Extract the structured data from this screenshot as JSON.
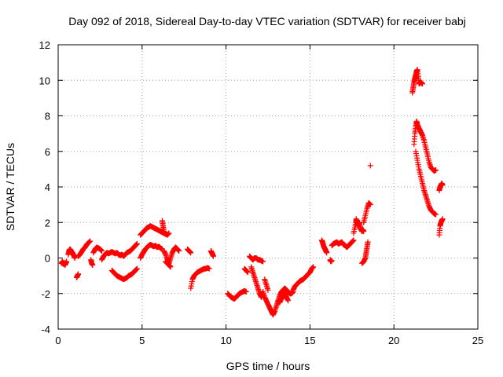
{
  "chart_data": {
    "type": "scatter",
    "title": "Day 092 of 2018, Sidereal Day-to-day VTEC variation (SDTVAR) for receiver babj",
    "xlabel": "GPS time / hours",
    "ylabel": "SDTVAR / TECUs",
    "xlim": [
      0,
      25
    ],
    "ylim": [
      -4,
      12
    ],
    "xticks": [
      0,
      5,
      10,
      15,
      20,
      25
    ],
    "yticks": [
      -4,
      -2,
      0,
      2,
      4,
      6,
      8,
      10,
      12
    ],
    "grid": true,
    "marker": "+",
    "color": "#ff0000",
    "series": [
      {
        "name": "SDTVAR",
        "segments": [
          {
            "x": [
              0.2,
              0.25,
              0.3,
              0.35,
              0.4,
              0.45,
              0.5
            ],
            "y": [
              -0.3,
              -0.2,
              -0.35,
              -0.25,
              -0.4,
              -0.3,
              -0.2
            ]
          },
          {
            "x": [
              0.6,
              0.65,
              0.7,
              0.75,
              0.8,
              0.85,
              0.9,
              0.95,
              1.0
            ],
            "y": [
              0.2,
              0.4,
              0.5,
              0.45,
              0.35,
              0.3,
              0.2,
              0.1,
              0.0
            ]
          },
          {
            "x": [
              1.1,
              1.15,
              1.2
            ],
            "y": [
              -1.1,
              -1.0,
              -0.9
            ]
          },
          {
            "x": [
              1.2,
              1.3,
              1.4,
              1.5,
              1.6,
              1.7,
              1.8,
              1.9
            ],
            "y": [
              0.1,
              0.2,
              0.35,
              0.5,
              0.6,
              0.75,
              0.85,
              0.95
            ]
          },
          {
            "x": [
              1.95,
              2.0,
              2.05
            ],
            "y": [
              -0.1,
              -0.3,
              -0.4
            ]
          },
          {
            "x": [
              2.1,
              2.2,
              2.3,
              2.4,
              2.5,
              2.6
            ],
            "y": [
              0.3,
              0.5,
              0.6,
              0.55,
              0.5,
              0.4
            ]
          },
          {
            "x": [
              2.6,
              2.7,
              2.8,
              2.9,
              3.0,
              3.1,
              3.2,
              3.3,
              3.4,
              3.5,
              3.6,
              3.7,
              3.8,
              3.9,
              4.0,
              4.1,
              4.2,
              4.3,
              4.4,
              4.5,
              4.6,
              4.7
            ],
            "y": [
              -0.1,
              0.1,
              0.2,
              0.3,
              0.25,
              0.3,
              0.35,
              0.3,
              0.25,
              0.3,
              0.2,
              0.15,
              0.2,
              0.1,
              0.2,
              0.3,
              0.35,
              0.4,
              0.5,
              0.6,
              0.7,
              0.8
            ]
          },
          {
            "x": [
              3.2,
              3.3,
              3.4,
              3.5,
              3.6,
              3.7,
              3.8,
              3.9,
              4.0,
              4.1,
              4.2,
              4.3,
              4.4,
              4.5,
              4.6,
              4.7
            ],
            "y": [
              -0.7,
              -0.8,
              -0.9,
              -1.0,
              -1.05,
              -1.1,
              -1.15,
              -1.2,
              -1.15,
              -1.1,
              -1.0,
              -0.95,
              -0.9,
              -0.8,
              -0.7,
              -0.6
            ]
          },
          {
            "x": [
              4.9,
              5.0,
              5.1,
              5.2,
              5.3,
              5.4,
              5.5,
              5.6,
              5.7,
              5.8,
              5.9,
              6.0,
              6.1,
              6.2,
              6.3,
              6.4,
              6.5,
              6.6
            ],
            "y": [
              1.3,
              1.4,
              1.5,
              1.6,
              1.7,
              1.75,
              1.8,
              1.75,
              1.7,
              1.65,
              1.6,
              1.55,
              1.5,
              1.45,
              1.4,
              1.35,
              1.3,
              1.4
            ]
          },
          {
            "x": [
              4.9,
              5.0,
              5.1,
              5.2,
              5.3,
              5.4,
              5.5,
              5.6,
              5.7,
              5.8,
              5.9,
              6.0,
              6.1,
              6.2
            ],
            "y": [
              0.0,
              0.2,
              0.35,
              0.5,
              0.6,
              0.7,
              0.75,
              0.7,
              0.65,
              0.7,
              0.6,
              0.65,
              0.55,
              0.5
            ]
          },
          {
            "x": [
              6.2,
              6.25,
              6.3
            ],
            "y": [
              2.1,
              1.8,
              1.5
            ]
          },
          {
            "x": [
              6.3,
              6.4,
              6.5,
              6.6,
              6.7,
              6.8,
              6.9,
              7.0,
              7.1,
              7.2
            ],
            "y": [
              0.4,
              0.2,
              -0.1,
              -0.3,
              0.0,
              0.3,
              0.5,
              0.6,
              0.5,
              0.4
            ]
          },
          {
            "x": [
              6.4,
              6.5,
              6.6,
              6.7
            ],
            "y": [
              -0.2,
              -0.3,
              -0.4,
              -0.5
            ]
          },
          {
            "x": [
              7.7,
              7.8,
              7.9
            ],
            "y": [
              0.5,
              0.4,
              0.3
            ]
          },
          {
            "x": [
              7.9,
              8.0,
              8.1,
              8.2,
              8.3,
              8.4,
              8.5,
              8.6,
              8.7,
              8.8,
              8.9,
              9.0
            ],
            "y": [
              -1.7,
              -1.2,
              -1.0,
              -0.9,
              -0.8,
              -0.75,
              -0.7,
              -0.65,
              -0.6,
              -0.6,
              -0.55,
              -0.6
            ]
          },
          {
            "x": [
              9.1,
              9.15,
              9.2,
              9.25
            ],
            "y": [
              0.4,
              0.3,
              0.2,
              0.1
            ]
          },
          {
            "x": [
              10.1,
              10.2,
              10.3,
              10.4,
              10.5,
              10.6,
              10.7,
              10.8,
              10.9,
              11.0,
              11.1,
              11.2
            ],
            "y": [
              -2.0,
              -2.1,
              -2.2,
              -2.25,
              -2.3,
              -2.2,
              -2.1,
              -2.0,
              -1.95,
              -1.9,
              -1.85,
              -1.9
            ]
          },
          {
            "x": [
              11.1,
              11.2,
              11.3
            ],
            "y": [
              -0.6,
              -0.7,
              -0.8
            ]
          },
          {
            "x": [
              11.4,
              11.5,
              11.6,
              11.7,
              11.8,
              11.9,
              12.0,
              12.1,
              12.2
            ],
            "y": [
              0.1,
              0.0,
              -0.1,
              0.0,
              0.0,
              -0.1,
              -0.1,
              -0.15,
              -0.2
            ]
          },
          {
            "x": [
              11.5,
              11.6,
              11.7,
              11.8,
              11.9,
              12.0,
              12.1
            ],
            "y": [
              -0.5,
              -0.8,
              -1.1,
              -1.4,
              -1.7,
              -2.0,
              -2.2
            ]
          },
          {
            "x": [
              12.1,
              12.2,
              12.3,
              12.4,
              12.5,
              12.6,
              12.7,
              12.8,
              12.9,
              13.0,
              13.1,
              13.2,
              13.3,
              13.4,
              13.5,
              13.6,
              13.7,
              13.8,
              13.9,
              14.0
            ],
            "y": [
              -2.2,
              -1.9,
              -2.2,
              -2.4,
              -2.6,
              -2.8,
              -3.0,
              -3.2,
              -3.0,
              -2.7,
              -2.4,
              -2.1,
              -1.9,
              -1.8,
              -1.7,
              -1.8,
              -1.9,
              -2.0,
              -2.0,
              -1.9
            ]
          },
          {
            "x": [
              12.3,
              12.4,
              12.5
            ],
            "y": [
              -1.2,
              -1.5,
              -1.8
            ]
          },
          {
            "x": [
              13.1,
              13.2,
              13.3,
              13.4,
              13.5,
              13.6,
              13.7
            ],
            "y": [
              -2.4,
              -2.5,
              -2.3,
              -2.1,
              -2.0,
              -2.2,
              -2.4
            ]
          },
          {
            "x": [
              14.0,
              14.1,
              14.2,
              14.3,
              14.4,
              14.5,
              14.6,
              14.7,
              14.8,
              14.9,
              15.0,
              15.1,
              15.2
            ],
            "y": [
              -1.8,
              -1.6,
              -1.5,
              -1.4,
              -1.3,
              -1.25,
              -1.2,
              -1.1,
              -1.0,
              -0.9,
              -0.8,
              -0.6,
              -0.5
            ]
          },
          {
            "x": [
              15.7,
              15.75,
              15.8,
              15.85,
              15.9,
              15.95,
              16.0
            ],
            "y": [
              1.0,
              0.9,
              0.7,
              0.6,
              0.5,
              0.4,
              0.3
            ]
          },
          {
            "x": [
              16.2,
              16.25,
              16.3
            ],
            "y": [
              -0.1,
              -0.2,
              -0.15
            ]
          },
          {
            "x": [
              16.3,
              16.4,
              16.5,
              16.6,
              16.7,
              16.8,
              16.9,
              17.0,
              17.1,
              17.2,
              17.3,
              17.4,
              17.5,
              17.6
            ],
            "y": [
              0.7,
              0.8,
              0.85,
              0.9,
              0.8,
              0.85,
              0.9,
              0.75,
              0.7,
              0.6,
              0.7,
              0.8,
              0.9,
              1.0
            ]
          },
          {
            "x": [
              17.6,
              17.7,
              17.75,
              17.8,
              17.85,
              17.9,
              17.95,
              18.0,
              18.05,
              18.1,
              18.15,
              18.2
            ],
            "y": [
              1.4,
              1.8,
              2.2,
              2.0,
              1.8,
              1.9,
              2.0,
              1.7,
              1.6,
              1.5,
              1.6,
              1.5
            ]
          },
          {
            "x": [
              18.2,
              18.3,
              18.4,
              18.5,
              18.6
            ],
            "y": [
              2.0,
              2.4,
              2.8,
              3.1,
              3.0
            ]
          },
          {
            "x": [
              18.1,
              18.2,
              18.3,
              18.35,
              18.4,
              18.45
            ],
            "y": [
              -0.3,
              -0.2,
              0.0,
              0.3,
              0.6,
              0.9
            ]
          },
          {
            "x": [
              18.6
            ],
            "y": [
              5.2
            ]
          },
          {
            "x": [
              21.1,
              21.15,
              21.2,
              21.25,
              21.3,
              21.35,
              21.4,
              21.45,
              21.5
            ],
            "y": [
              9.3,
              9.6,
              9.9,
              10.1,
              10.3,
              10.5,
              10.6,
              10.2,
              9.8
            ]
          },
          {
            "x": [
              21.5,
              21.6,
              21.7
            ],
            "y": [
              9.8,
              9.9,
              9.8
            ]
          },
          {
            "x": [
              21.2,
              21.25,
              21.3,
              21.35,
              21.4,
              21.5,
              21.6,
              21.7,
              21.8,
              21.9,
              22.0,
              22.1,
              22.2,
              22.3,
              22.4,
              22.5
            ],
            "y": [
              6.4,
              7.0,
              7.4,
              7.7,
              7.5,
              7.3,
              7.1,
              6.9,
              6.6,
              6.2,
              5.8,
              5.4,
              5.1,
              5.0,
              4.9,
              4.95
            ]
          },
          {
            "x": [
              21.3,
              21.4,
              21.5,
              21.6,
              21.7,
              21.8,
              21.9,
              22.0,
              22.1,
              22.2,
              22.3,
              22.4,
              22.5
            ],
            "y": [
              6.0,
              5.5,
              5.0,
              4.6,
              4.2,
              3.8,
              3.5,
              3.2,
              2.9,
              2.7,
              2.6,
              2.5,
              2.45
            ]
          },
          {
            "x": [
              22.7,
              22.75,
              22.8,
              22.85,
              22.9
            ],
            "y": [
              1.3,
              1.8,
              2.0,
              2.1,
              2.2
            ]
          },
          {
            "x": [
              22.7,
              22.75,
              22.8,
              22.85,
              22.9
            ],
            "y": [
              3.8,
              4.0,
              4.1,
              4.2,
              4.1
            ]
          }
        ]
      }
    ]
  }
}
